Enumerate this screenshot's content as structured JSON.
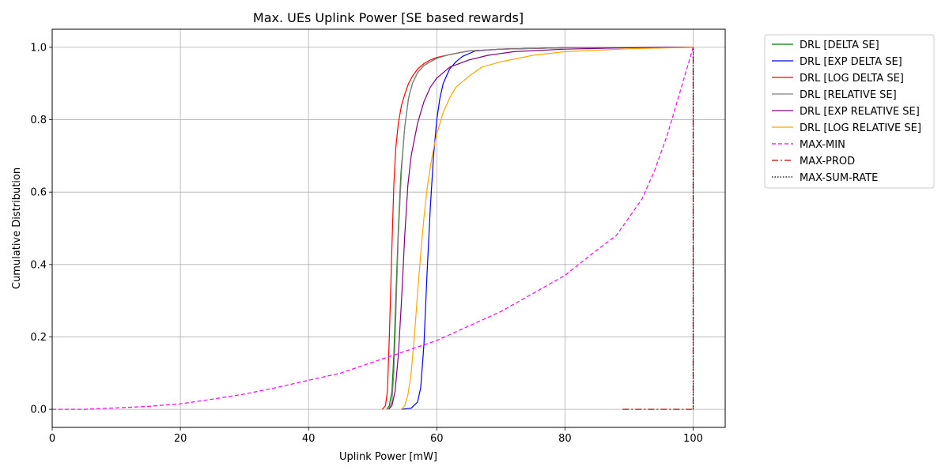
{
  "chart_data": {
    "type": "line",
    "title": "Max. UEs Uplink Power [SE based rewards]",
    "xlabel": "Uplink Power [mW]",
    "ylabel": "Cumulative Distribution",
    "xlim": [
      0,
      105
    ],
    "ylim": [
      -0.05,
      1.05
    ],
    "xticks": [
      0,
      20,
      40,
      60,
      80,
      100
    ],
    "xtick_labels": [
      "0",
      "20",
      "40",
      "60",
      "80",
      "100"
    ],
    "yticks": [
      0.0,
      0.2,
      0.4,
      0.6,
      0.8,
      1.0
    ],
    "ytick_labels": [
      "0.0",
      "0.2",
      "0.4",
      "0.6",
      "0.8",
      "1.0"
    ],
    "grid": true,
    "legend_position": "outside-top-right",
    "series": [
      {
        "name": "DRL [DELTA SE]",
        "color": "#008000",
        "dash": "solid",
        "x": [
          52.2,
          52.6,
          53.0,
          53.3,
          53.6,
          54.0,
          54.4,
          55.0,
          55.6,
          56.2,
          57.0,
          58.0,
          59.0,
          60.0,
          62.0,
          65.0,
          70.0,
          80.0,
          100.0
        ],
        "y": [
          0.0,
          0.01,
          0.05,
          0.15,
          0.3,
          0.5,
          0.65,
          0.78,
          0.86,
          0.9,
          0.93,
          0.95,
          0.96,
          0.97,
          0.98,
          0.99,
          0.995,
          0.999,
          1.0
        ]
      },
      {
        "name": "DRL [EXP DELTA SE]",
        "color": "#0000ff",
        "dash": "solid",
        "x": [
          54.5,
          56.0,
          57.0,
          57.5,
          58.0,
          58.5,
          59.0,
          59.5,
          60.0,
          60.5,
          61.0,
          62.0,
          63.0,
          64.0,
          66.0,
          70.0,
          80.0,
          100.0
        ],
        "y": [
          0.0,
          0.003,
          0.02,
          0.06,
          0.18,
          0.38,
          0.56,
          0.7,
          0.8,
          0.86,
          0.9,
          0.94,
          0.96,
          0.975,
          0.99,
          0.995,
          0.999,
          1.0
        ]
      },
      {
        "name": "DRL [LOG DELTA SE]",
        "color": "#ff0000",
        "dash": "solid",
        "x": [
          51.5,
          52.0,
          52.3,
          52.6,
          53.0,
          53.3,
          53.6,
          54.0,
          54.5,
          55.0,
          55.6,
          56.2,
          57.0,
          58.0,
          59.0,
          60.0,
          62.0,
          65.0,
          70.0,
          80.0,
          100.0
        ],
        "y": [
          0.0,
          0.01,
          0.05,
          0.2,
          0.45,
          0.62,
          0.72,
          0.79,
          0.84,
          0.87,
          0.9,
          0.92,
          0.94,
          0.955,
          0.965,
          0.972,
          0.98,
          0.99,
          0.995,
          0.999,
          1.0
        ]
      },
      {
        "name": "DRL [RELATIVE SE]",
        "color": "#808080",
        "dash": "solid",
        "x": [
          52.5,
          53.0,
          53.3,
          53.6,
          54.0,
          54.5,
          55.0,
          55.6,
          56.2,
          57.0,
          58.0,
          59.0,
          60.0,
          62.0,
          65.0,
          70.0,
          80.0,
          100.0
        ],
        "y": [
          0.0,
          0.02,
          0.1,
          0.25,
          0.48,
          0.66,
          0.78,
          0.86,
          0.9,
          0.93,
          0.95,
          0.96,
          0.97,
          0.98,
          0.99,
          0.995,
          0.999,
          1.0
        ]
      },
      {
        "name": "DRL [EXP RELATIVE SE]",
        "color": "#800080",
        "dash": "solid",
        "x": [
          52.5,
          53.0,
          53.5,
          54.0,
          54.5,
          55.0,
          55.5,
          56.0,
          57.0,
          58.0,
          59.0,
          60.0,
          62.0,
          65.0,
          68.0,
          72.0,
          80.0,
          90.0,
          100.0
        ],
        "y": [
          0.0,
          0.01,
          0.05,
          0.15,
          0.3,
          0.48,
          0.62,
          0.7,
          0.79,
          0.85,
          0.89,
          0.915,
          0.945,
          0.965,
          0.978,
          0.988,
          0.995,
          0.999,
          1.0
        ]
      },
      {
        "name": "DRL [LOG RELATIVE SE]",
        "color": "#ffa500",
        "dash": "solid",
        "x": [
          54.5,
          55.0,
          55.5,
          56.0,
          56.5,
          57.0,
          57.5,
          58.0,
          58.5,
          59.0,
          59.5,
          60.0,
          61.0,
          62.0,
          63.0,
          65.0,
          67.0,
          70.0,
          75.0,
          80.0,
          90.0,
          100.0
        ],
        "y": [
          0.0,
          0.01,
          0.04,
          0.1,
          0.2,
          0.32,
          0.43,
          0.53,
          0.61,
          0.67,
          0.72,
          0.76,
          0.82,
          0.86,
          0.89,
          0.92,
          0.945,
          0.96,
          0.978,
          0.988,
          0.996,
          1.0
        ]
      },
      {
        "name": "MAX-MIN",
        "color": "#ff00ff",
        "dash": "dashed",
        "x": [
          0,
          5,
          10,
          15,
          20,
          25,
          30,
          35,
          40,
          45,
          50,
          55,
          60,
          65,
          70,
          75,
          80,
          85,
          88,
          90,
          92,
          94,
          96,
          98,
          100
        ],
        "y": [
          0.0,
          0.0,
          0.004,
          0.008,
          0.015,
          0.028,
          0.042,
          0.06,
          0.08,
          0.1,
          0.13,
          0.16,
          0.19,
          0.23,
          0.27,
          0.32,
          0.37,
          0.44,
          0.48,
          0.53,
          0.58,
          0.66,
          0.76,
          0.88,
          1.0
        ]
      },
      {
        "name": "MAX-PROD",
        "color": "#cc0000",
        "dash": "dashdot",
        "x": [
          89,
          100,
          100
        ],
        "y": [
          0.0,
          0.0,
          1.0
        ]
      },
      {
        "name": "MAX-SUM-RATE",
        "color": "#000000",
        "dash": "dotted",
        "x": [
          100,
          100
        ],
        "y": [
          0.0,
          1.0
        ]
      }
    ]
  }
}
